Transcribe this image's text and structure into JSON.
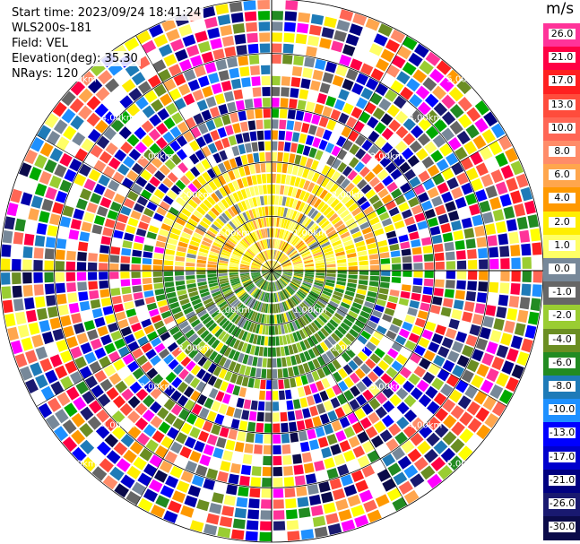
{
  "header": {
    "start_time": "Start time: 2023/09/24 18:41:24",
    "instrument": "WLS200s-181",
    "field": "Field: VEL",
    "elevation": "Elevation(deg): 35.30",
    "nrays": "NRays: 120"
  },
  "colorbar": {
    "unit": "m/s",
    "ticks": [
      "26.0",
      "21.0",
      "17.0",
      "13.0",
      "10.0",
      "8.0",
      "6.0",
      "4.0",
      "2.0",
      "1.0",
      "0.0",
      "-1.0",
      "-2.0",
      "-4.0",
      "-6.0",
      "-8.0",
      "-10.0",
      "-13.0",
      "-17.0",
      "-21.0",
      "-26.0",
      "-30.0"
    ],
    "colors": [
      "#ff3399",
      "#ff0044",
      "#ff2020",
      "#ff4c3c",
      "#ff6655",
      "#ff8c69",
      "#ffa64d",
      "#ff9900",
      "#ffee00",
      "#ffff66",
      "#778899",
      "#666666",
      "#9acd32",
      "#6b8e23",
      "#228b22",
      "#1e7bb8",
      "#1e90ff",
      "#0000ff",
      "#0000cd",
      "#000080",
      "#191970",
      "#0b0b4a"
    ]
  },
  "chart_data": {
    "type": "heatmap",
    "projection": "polar PPI",
    "field": "VEL",
    "units": "m/s",
    "elevation_deg": 35.3,
    "nrays": 120,
    "ring_labels": [
      "1.00km",
      "2.00km",
      "3.00km",
      "4.00km",
      "5.00km"
    ],
    "range_rings_km": [
      1,
      2,
      3,
      4,
      5
    ],
    "gate_step_km": 0.2,
    "max_range_km": 5.0,
    "valid_range_km": 2.2,
    "near_field_pattern": {
      "north_half": "yellow to orange (about 2 to 6 m/s)",
      "south_half": "green and gray (about -6 to 1 m/s)"
    },
    "far_field": "noisy multicolor returns beyond about 2.2 km",
    "grid": true
  }
}
